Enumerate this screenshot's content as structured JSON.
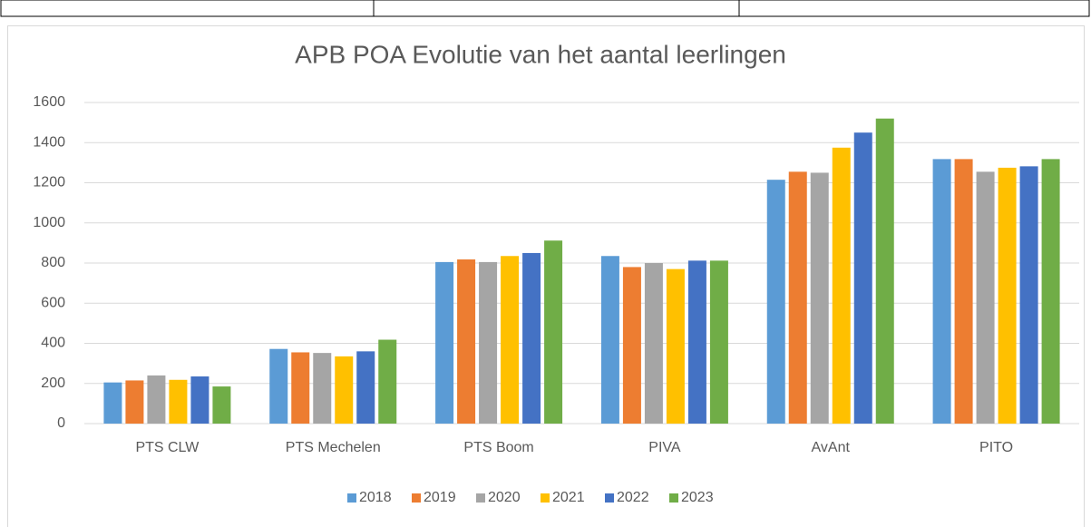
{
  "chart_data": {
    "type": "bar",
    "title": "APB POA Evolutie van het aantal leerlingen",
    "categories": [
      "PTS CLW",
      "PTS Mechelen",
      "PTS Boom",
      "PIVA",
      "AvAnt",
      "PITO"
    ],
    "series": [
      {
        "name": "2018",
        "color": "#5b9bd5",
        "values": [
          205,
          372,
          805,
          835,
          1215,
          1318
        ]
      },
      {
        "name": "2019",
        "color": "#ed7d31",
        "values": [
          215,
          355,
          818,
          780,
          1255,
          1318
        ]
      },
      {
        "name": "2020",
        "color": "#a5a5a5",
        "values": [
          240,
          352,
          805,
          800,
          1250,
          1255
        ]
      },
      {
        "name": "2021",
        "color": "#ffc000",
        "values": [
          218,
          335,
          835,
          770,
          1375,
          1275
        ]
      },
      {
        "name": "2022",
        "color": "#4472c4",
        "values": [
          235,
          360,
          850,
          812,
          1450,
          1282
        ]
      },
      {
        "name": "2023",
        "color": "#70ad47",
        "values": [
          185,
          418,
          912,
          812,
          1520,
          1318
        ]
      }
    ],
    "ylim": [
      0,
      1600
    ],
    "yticks": [
      0,
      200,
      400,
      600,
      800,
      1000,
      1200,
      1400,
      1600
    ],
    "grid": true,
    "legend": "bottom"
  }
}
